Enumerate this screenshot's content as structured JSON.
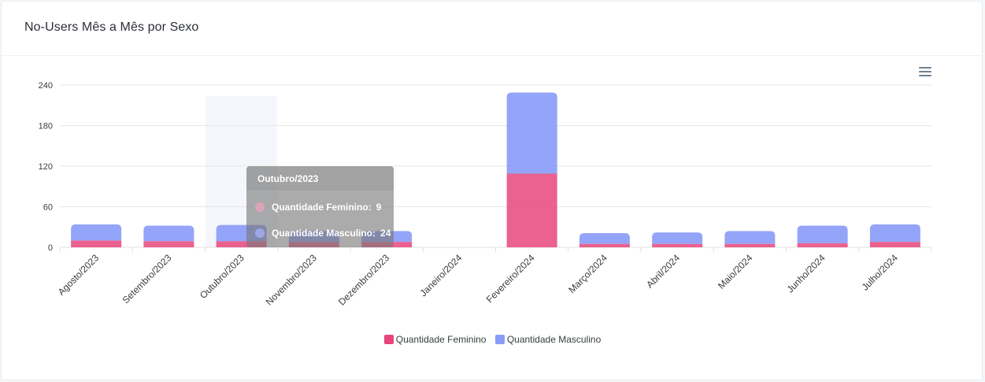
{
  "header": {
    "title": "No-Users Mês a Mês por Sexo"
  },
  "toolbar": {
    "menu_icon": "hamburger-menu-icon"
  },
  "colors": {
    "feminino": "#e8457b",
    "masculino": "#8b9cf8",
    "grid": "#e6e6e6",
    "axis_text": "#373d3f"
  },
  "chart_data": {
    "type": "bar",
    "stacked": true,
    "categories": [
      "Agosto/2023",
      "Setembro/2023",
      "Outubro/2023",
      "Novembro/2023",
      "Dezembro/2023",
      "Janeiro/2024",
      "Fevereiro/2024",
      "Março/2024",
      "Abril/2024",
      "Maio/2024",
      "Junho/2024",
      "Julho/2024"
    ],
    "series": [
      {
        "name": "Quantidade Feminino",
        "values": [
          10,
          9,
          9,
          8,
          8,
          0,
          109,
          5,
          5,
          5,
          6,
          8
        ]
      },
      {
        "name": "Quantidade Masculino",
        "values": [
          24,
          23,
          24,
          16,
          16,
          0,
          120,
          16,
          17,
          19,
          26,
          26
        ]
      }
    ],
    "yticks": [
      0,
      60,
      120,
      180,
      240
    ],
    "ylim": [
      0,
      240
    ],
    "grid": true,
    "legend_position": "bottom-center",
    "hovered_category": "Outubro/2023"
  },
  "tooltip": {
    "title": "Outubro/2023",
    "rows": [
      {
        "label": "Quantidade Feminino:",
        "value": "9"
      },
      {
        "label": "Quantidade Masculino:",
        "value": "24"
      }
    ]
  }
}
